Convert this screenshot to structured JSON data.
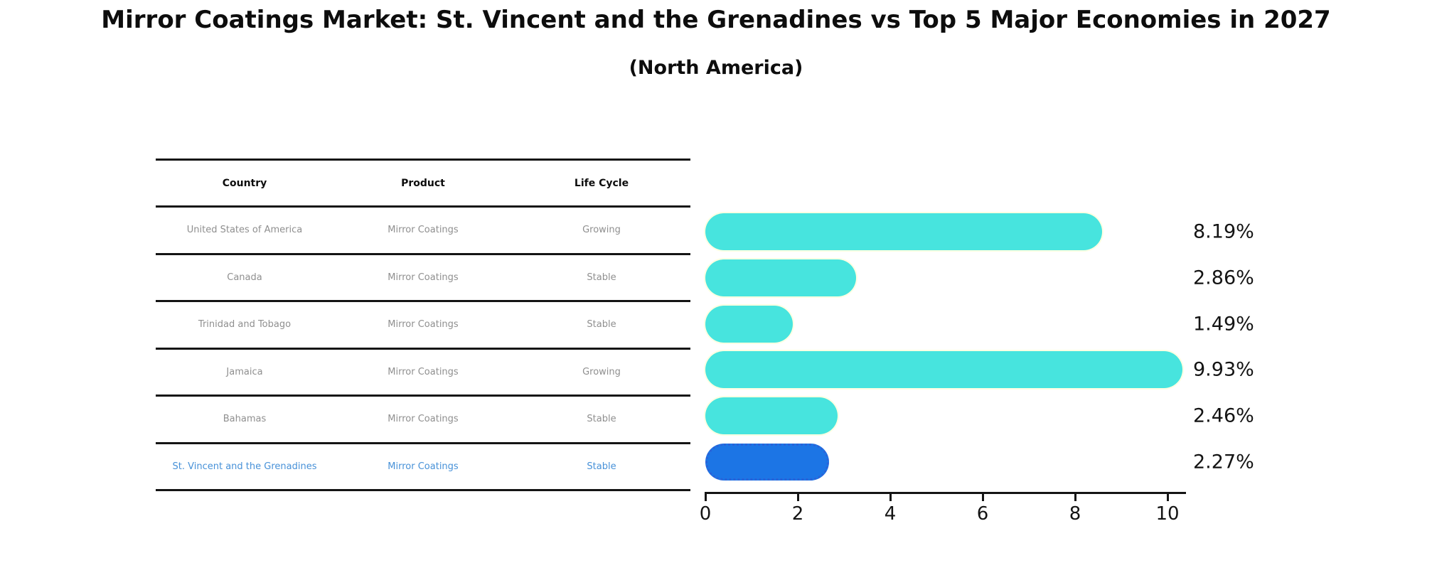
{
  "title": "Mirror Coatings Market: St. Vincent and the Grenadines vs Top 5 Major Economies in 2027",
  "subtitle": "(North America)",
  "table": {
    "headers": [
      "Country",
      "Product",
      "Life Cycle"
    ],
    "rows": [
      {
        "country": "United States of America",
        "product": "Mirror Coatings",
        "life_cycle": "Growing",
        "highlight": false
      },
      {
        "country": "Canada",
        "product": "Mirror Coatings",
        "life_cycle": "Stable",
        "highlight": false
      },
      {
        "country": "Trinidad and Tobago",
        "product": "Mirror Coatings",
        "life_cycle": "Stable",
        "highlight": false
      },
      {
        "country": "Jamaica",
        "product": "Mirror Coatings",
        "life_cycle": "Growing",
        "highlight": false
      },
      {
        "country": "Bahamas",
        "product": "Mirror Coatings",
        "life_cycle": "Stable",
        "highlight": false
      },
      {
        "country": "St. Vincent and the Grenadines",
        "product": "Mirror Coatings",
        "life_cycle": "Stable",
        "highlight": true
      }
    ]
  },
  "chart_data": {
    "type": "bar",
    "orientation": "horizontal",
    "title": "Mirror Coatings Market: St. Vincent and the Grenadines vs Top 5 Major Economies in 2027 (North America)",
    "categories": [
      "United States of America",
      "Canada",
      "Trinidad and Tobago",
      "Jamaica",
      "Bahamas",
      "St. Vincent and the Grenadines"
    ],
    "values": [
      8.19,
      2.86,
      1.49,
      9.93,
      2.46,
      2.27
    ],
    "labels": [
      "8.19%",
      "2.86%",
      "1.49%",
      "9.93%",
      "2.46%",
      "2.27%"
    ],
    "xlabel": "",
    "ylabel": "",
    "xlim": [
      0,
      10.4
    ],
    "xticks": [
      0,
      2,
      4,
      6,
      8,
      10
    ],
    "grid": false,
    "legend": false,
    "highlight_index": 5
  },
  "colors": {
    "bar_cyan": "#47e4de",
    "bar_highlight_blue": "#1c75e5",
    "highlight_text_blue": "#4791d8",
    "table_text_gray": "#8f8f8f",
    "axis_black": "#141414",
    "bar_edge_pale": "#ffffe0"
  }
}
